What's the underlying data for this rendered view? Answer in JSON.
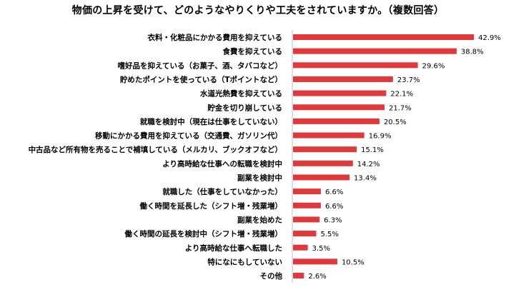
{
  "chart_data": {
    "type": "bar",
    "orientation": "horizontal",
    "title": "物価の上昇を受けて、どのようなやりくりや工夫をされていますか。（複数回答）",
    "categories": [
      "衣料・化粧品にかかる費用を抑えている",
      "食費を抑えている",
      "嗜好品を抑えている（お菓子、酒、タバコなど）",
      "貯めたポイントを使っている（Tポイントなど）",
      "水道光熱費を抑えている",
      "貯金を切り崩している",
      "就職を検討中（現在は仕事をしていない）",
      "移動にかかる費用を抑えている（交通費、ガソリン代）",
      "中古品など所有物を売ることで補填している（メルカリ、ブックオフなど）",
      "より高時給な仕事への転職を検討中",
      "副業を検討中",
      "就職した（仕事をしていなかった）",
      "働く時間を延長した（シフト増・残業増）",
      "副業を始めた",
      "働く時間の延長を検討中（シフト増・残業増）",
      "より高時給な仕事へ転職した",
      "特になにもしていない",
      "その他"
    ],
    "values": [
      42.9,
      38.8,
      29.6,
      23.7,
      22.1,
      21.7,
      20.5,
      16.9,
      15.1,
      14.2,
      13.4,
      6.6,
      6.6,
      6.3,
      5.5,
      3.5,
      10.5,
      2.6
    ],
    "value_labels": [
      "42.9%",
      "38.8%",
      "29.6%",
      "23.7%",
      "22.1%",
      "21.7%",
      "20.5%",
      "16.9%",
      "15.1%",
      "14.2%",
      "13.4%",
      "6.6%",
      "6.6%",
      "6.3%",
      "5.5%",
      "3.5%",
      "10.5%",
      "2.6%"
    ],
    "unit": "%",
    "xlim": [
      0,
      50
    ],
    "grid": false,
    "bar_color": "#e0393c"
  }
}
